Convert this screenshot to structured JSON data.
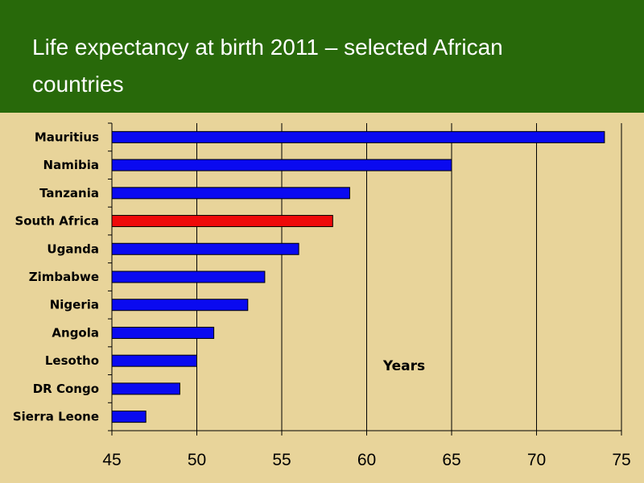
{
  "slide": {
    "title": "Life expectancy at birth 2011 – selected African countries"
  },
  "colors": {
    "title_bg": "#28690a",
    "background": "#e8d49a",
    "bar": "#0a0af0",
    "highlight": "#ee0a0a"
  },
  "chart_data": {
    "type": "bar",
    "orientation": "horizontal",
    "categories": [
      "Mauritius",
      "Namibia",
      "Tanzania",
      "South Africa",
      "Uganda",
      "Zimbabwe",
      "Nigeria",
      "Angola",
      "Lesotho",
      "DR Congo",
      "Sierra Leone"
    ],
    "values": [
      74,
      65,
      59,
      58,
      56,
      54,
      53,
      51,
      50,
      49,
      47
    ],
    "highlight": "South Africa",
    "xlim": [
      45,
      75
    ],
    "xticks": [
      "45",
      "50",
      "55",
      "60",
      "65",
      "70",
      "75"
    ],
    "annotation": "Years",
    "grid": "vertical"
  }
}
